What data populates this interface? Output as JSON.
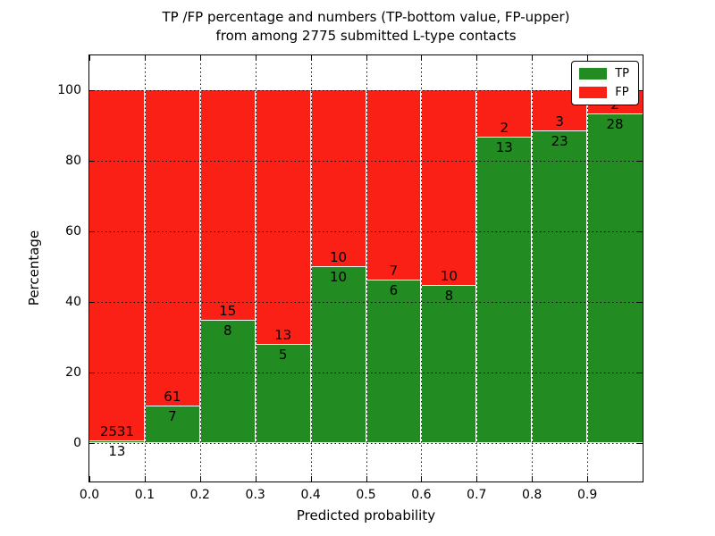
{
  "chart_data": {
    "type": "bar",
    "stacked": true,
    "title_lines": [
      "TP /FP percentage and numbers (TP-bottom value, FP-upper)",
      "from among 2775 submitted L-type contacts"
    ],
    "xlabel": "Predicted probability",
    "ylabel": "Percentage",
    "total_submitted_contacts": 2775,
    "xlim": [
      0.0,
      1.0
    ],
    "ylim": [
      -11,
      110
    ],
    "x_ticks": [
      0.0,
      0.1,
      0.2,
      0.3,
      0.4,
      0.5,
      0.6,
      0.7,
      0.8,
      0.9
    ],
    "x_tick_labels": [
      "0.0",
      "0.1",
      "0.2",
      "0.3",
      "0.4",
      "0.5",
      "0.6",
      "0.7",
      "0.8",
      "0.9"
    ],
    "y_ticks": [
      0,
      20,
      40,
      60,
      80,
      100
    ],
    "y_tick_labels": [
      "0",
      "20",
      "40",
      "60",
      "80",
      "100"
    ],
    "grid": "dotted-black-on-top",
    "legend": {
      "position": "upper-right",
      "entries": [
        {
          "label": "TP",
          "color": "#228b22"
        },
        {
          "label": "FP",
          "color": "#fb2015"
        }
      ]
    },
    "bins": [
      {
        "x0": 0.0,
        "x1": 0.1,
        "tp": 13,
        "fp": 2531
      },
      {
        "x0": 0.1,
        "x1": 0.2,
        "tp": 7,
        "fp": 61
      },
      {
        "x0": 0.2,
        "x1": 0.3,
        "tp": 8,
        "fp": 15
      },
      {
        "x0": 0.3,
        "x1": 0.4,
        "tp": 5,
        "fp": 13
      },
      {
        "x0": 0.4,
        "x1": 0.5,
        "tp": 10,
        "fp": 10
      },
      {
        "x0": 0.5,
        "x1": 0.6,
        "tp": 6,
        "fp": 7
      },
      {
        "x0": 0.6,
        "x1": 0.7,
        "tp": 8,
        "fp": 10
      },
      {
        "x0": 0.7,
        "x1": 0.8,
        "tp": 13,
        "fp": 2
      },
      {
        "x0": 0.8,
        "x1": 0.9,
        "tp": 23,
        "fp": 3
      },
      {
        "x0": 0.9,
        "x1": 1.0,
        "tp": 28,
        "fp": 2
      }
    ]
  },
  "colors": {
    "tp": "#228b22",
    "fp": "#fb2015",
    "bar_edge": "#ffffff",
    "grid": "#000000",
    "text": "#000000",
    "background": "#ffffff"
  }
}
